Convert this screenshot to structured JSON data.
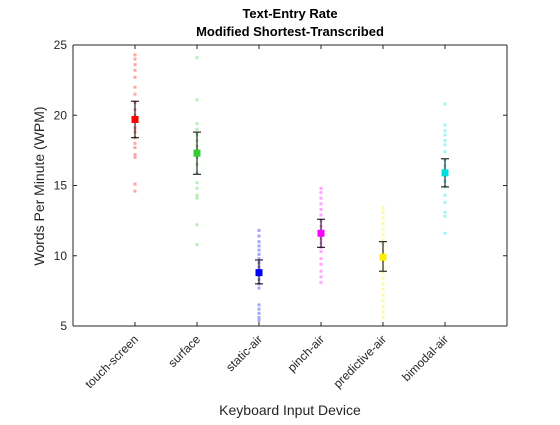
{
  "chart_data": {
    "type": "scatter",
    "title": "Text-Entry Rate",
    "subtitle": "Modified Shortest-Transcribed",
    "xlabel": "Keyboard Input Device",
    "ylabel": "Words Per Minute (WPM)",
    "ylim": [
      5,
      25
    ],
    "yticks": [
      5,
      10,
      15,
      20,
      25
    ],
    "categories": [
      "touch-screen",
      "surface",
      "static-air",
      "pinch-air",
      "predictive-air",
      "bimodal-air"
    ],
    "grid": false,
    "series": [
      {
        "category": "touch-screen",
        "color": "#ff0000",
        "mean": 19.7,
        "err_low": 18.4,
        "err_high": 21.0,
        "points": [
          24.3,
          24.0,
          23.6,
          23.2,
          22.7,
          22.0,
          21.5,
          20.9,
          20.4,
          20.0,
          19.6,
          19.1,
          18.8,
          18.4,
          18.0,
          17.7,
          17.2,
          17.0,
          15.1,
          14.6
        ]
      },
      {
        "category": "surface",
        "color": "#33cc33",
        "mean": 17.3,
        "err_low": 15.8,
        "err_high": 18.8,
        "points": [
          24.1,
          21.1,
          19.4,
          19.0,
          18.6,
          18.2,
          17.8,
          17.5,
          17.0,
          16.5,
          15.9,
          15.2,
          14.8,
          14.3,
          14.1,
          12.2,
          10.8
        ]
      },
      {
        "category": "static-air",
        "color": "#0000ff",
        "mean": 8.8,
        "err_low": 8.0,
        "err_high": 9.7,
        "points": [
          11.8,
          11.4,
          11.0,
          10.7,
          10.4,
          10.1,
          9.8,
          9.5,
          9.2,
          8.9,
          8.6,
          8.3,
          8.0,
          7.7,
          6.5,
          6.2,
          5.9,
          5.6,
          5.4
        ]
      },
      {
        "category": "pinch-air",
        "color": "#ff00ff",
        "mean": 11.6,
        "err_low": 10.6,
        "err_high": 12.6,
        "points": [
          14.8,
          14.5,
          14.1,
          13.7,
          13.3,
          12.9,
          12.5,
          12.1,
          11.8,
          11.5,
          11.2,
          10.9,
          10.6,
          10.3,
          9.8,
          9.4,
          8.9,
          8.5,
          8.1
        ]
      },
      {
        "category": "predictive-air",
        "color": "#ffee00",
        "mean": 9.9,
        "err_low": 8.9,
        "err_high": 11.0,
        "points": [
          13.4,
          13.1,
          12.7,
          12.3,
          11.9,
          11.5,
          11.1,
          10.8,
          10.4,
          10.0,
          9.6,
          9.2,
          8.8,
          8.4,
          8.0,
          7.6,
          7.2,
          6.8,
          6.4,
          6.0,
          5.6
        ]
      },
      {
        "category": "bimodal-air",
        "color": "#00e0e0",
        "mean": 15.9,
        "err_low": 14.9,
        "err_high": 16.9,
        "points": [
          20.8,
          19.3,
          18.9,
          18.6,
          18.2,
          17.9,
          17.4,
          16.8,
          16.4,
          16.1,
          15.7,
          15.3,
          14.9,
          14.3,
          13.8,
          13.1,
          12.8,
          11.6
        ]
      }
    ]
  }
}
